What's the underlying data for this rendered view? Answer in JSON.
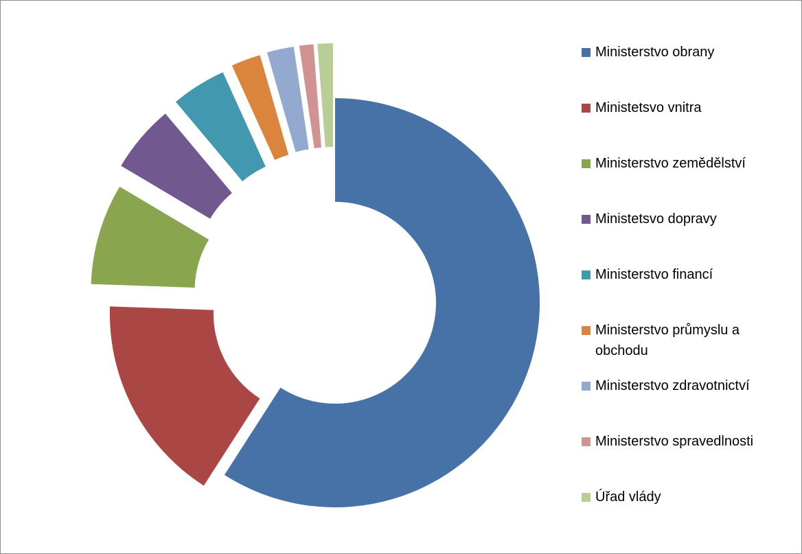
{
  "chart_data": {
    "type": "pie",
    "variant": "doughnut",
    "title": "",
    "exploded": true,
    "legend_position": "right",
    "categories": [
      "Ministerstvo obrany",
      "Ministetsvo vnitra",
      "Ministerstvo zemědělství",
      "Ministetsvo dopravy",
      "Ministerstvo financí",
      "Ministerstvo průmyslu a obchodu",
      "Ministerstvo zdravotnictví",
      "Ministerstvo spravedlnosti",
      "Úřad vlády"
    ],
    "values": [
      58.5,
      16.3,
      7.9,
      5.3,
      4.3,
      2.3,
      2.1,
      1.1,
      1.2
    ],
    "colors": [
      "#4672A8",
      "#AA4643",
      "#89A54E",
      "#71588F",
      "#4198AF",
      "#DB843D",
      "#93A9CF",
      "#D19392",
      "#B9CD96"
    ]
  }
}
